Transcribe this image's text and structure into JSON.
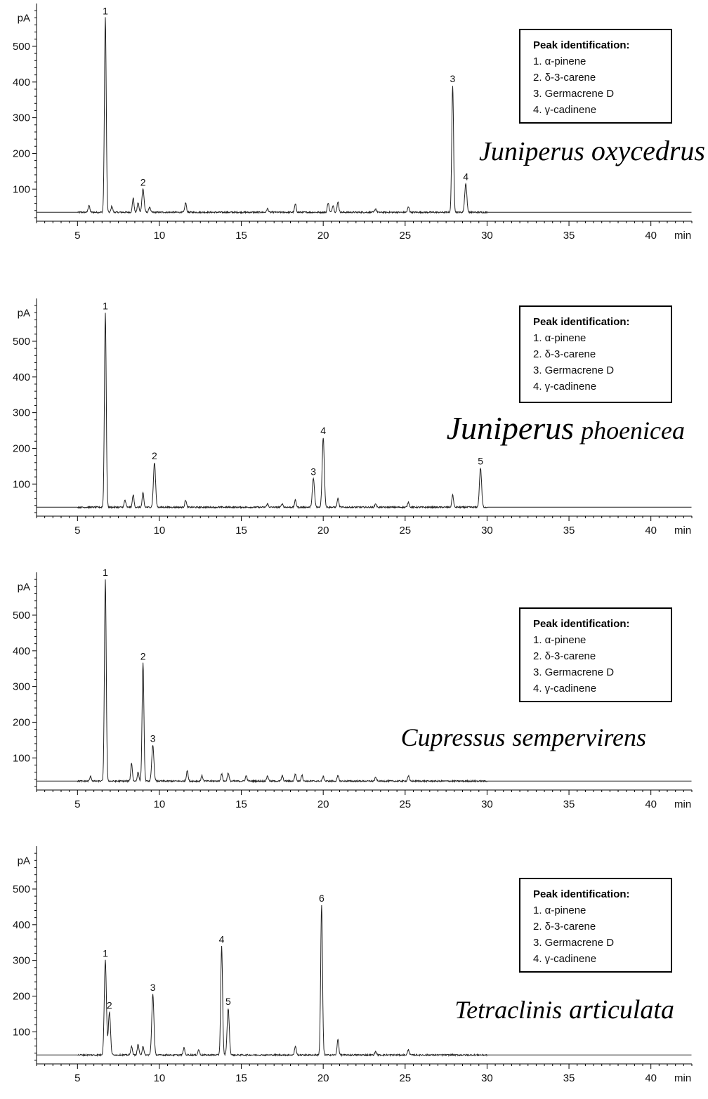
{
  "chart_data": [
    {
      "type": "line",
      "title": "",
      "species": [
        "Juniperus",
        "oxycedrus"
      ],
      "ylabel": "pA",
      "xlabel": "min",
      "xlim": [
        2.5,
        42.5
      ],
      "ylim": [
        10,
        620
      ],
      "x_ticks": [
        5,
        10,
        15,
        20,
        25,
        30,
        35,
        40
      ],
      "y_ticks": [
        100,
        200,
        300,
        400,
        500
      ],
      "baseline": 35,
      "legend": {
        "title": "Peak identification:",
        "items": [
          "1. α-pinene",
          "2. δ-3-carene",
          "3. Germacrene D",
          "4. γ-cadinene"
        ]
      },
      "labeled_peaks": [
        {
          "label": "1",
          "x": 6.7,
          "y": 580
        },
        {
          "label": "2",
          "x": 9.0,
          "y": 100
        },
        {
          "label": "3",
          "x": 27.9,
          "y": 390
        },
        {
          "label": "4",
          "x": 28.7,
          "y": 115
        }
      ],
      "minor_peaks": [
        {
          "x": 5.7,
          "y": 55
        },
        {
          "x": 7.1,
          "y": 52
        },
        {
          "x": 8.4,
          "y": 75
        },
        {
          "x": 8.7,
          "y": 62
        },
        {
          "x": 9.4,
          "y": 50
        },
        {
          "x": 11.6,
          "y": 62
        },
        {
          "x": 16.6,
          "y": 45
        },
        {
          "x": 18.3,
          "y": 58
        },
        {
          "x": 20.3,
          "y": 62
        },
        {
          "x": 20.6,
          "y": 55
        },
        {
          "x": 20.9,
          "y": 65
        },
        {
          "x": 23.2,
          "y": 45
        },
        {
          "x": 25.2,
          "y": 50
        }
      ]
    },
    {
      "type": "line",
      "title": "",
      "species": [
        "Juniperus",
        "phoenicea"
      ],
      "ylabel": "pA",
      "xlabel": "min",
      "xlim": [
        2.5,
        42.5
      ],
      "ylim": [
        10,
        620
      ],
      "x_ticks": [
        5,
        10,
        15,
        20,
        25,
        30,
        35,
        40
      ],
      "y_ticks": [
        100,
        200,
        300,
        400,
        500
      ],
      "baseline": 35,
      "legend": {
        "title": "Peak identification:",
        "items": [
          "1. α-pinene",
          "2. δ-3-carene",
          "3. Germacrene D",
          "4. γ-cadinene"
        ]
      },
      "labeled_peaks": [
        {
          "label": "1",
          "x": 6.7,
          "y": 580
        },
        {
          "label": "2",
          "x": 9.7,
          "y": 160
        },
        {
          "label": "3",
          "x": 19.4,
          "y": 115
        },
        {
          "label": "4",
          "x": 20.0,
          "y": 230
        },
        {
          "label": "5",
          "x": 29.6,
          "y": 145
        }
      ],
      "minor_peaks": [
        {
          "x": 7.9,
          "y": 55
        },
        {
          "x": 8.4,
          "y": 70
        },
        {
          "x": 9.0,
          "y": 75
        },
        {
          "x": 11.6,
          "y": 55
        },
        {
          "x": 16.6,
          "y": 45
        },
        {
          "x": 17.5,
          "y": 45
        },
        {
          "x": 18.3,
          "y": 55
        },
        {
          "x": 20.9,
          "y": 60
        },
        {
          "x": 23.2,
          "y": 45
        },
        {
          "x": 25.2,
          "y": 50
        },
        {
          "x": 27.9,
          "y": 70
        }
      ]
    },
    {
      "type": "line",
      "title": "",
      "species": [
        "Cupressus",
        "sempervirens"
      ],
      "ylabel": "pA",
      "xlabel": "min",
      "xlim": [
        2.5,
        42.5
      ],
      "ylim": [
        10,
        620
      ],
      "x_ticks": [
        5,
        10,
        15,
        20,
        25,
        30,
        35,
        40
      ],
      "y_ticks": [
        100,
        200,
        300,
        400,
        500
      ],
      "baseline": 35,
      "legend": {
        "title": "Peak identification:",
        "items": [
          "1. α-pinene",
          "2. δ-3-carene",
          "3. Germacrene D",
          "4. γ-cadinene"
        ]
      },
      "labeled_peaks": [
        {
          "label": "1",
          "x": 6.7,
          "y": 600
        },
        {
          "label": "2",
          "x": 9.0,
          "y": 365
        },
        {
          "label": "3",
          "x": 9.6,
          "y": 135
        }
      ],
      "minor_peaks": [
        {
          "x": 5.8,
          "y": 48
        },
        {
          "x": 8.3,
          "y": 85
        },
        {
          "x": 8.7,
          "y": 60
        },
        {
          "x": 11.7,
          "y": 65
        },
        {
          "x": 12.6,
          "y": 50
        },
        {
          "x": 13.8,
          "y": 55
        },
        {
          "x": 14.2,
          "y": 58
        },
        {
          "x": 15.3,
          "y": 50
        },
        {
          "x": 16.6,
          "y": 50
        },
        {
          "x": 17.5,
          "y": 50
        },
        {
          "x": 18.3,
          "y": 55
        },
        {
          "x": 18.7,
          "y": 52
        },
        {
          "x": 20.0,
          "y": 48
        },
        {
          "x": 20.9,
          "y": 50
        },
        {
          "x": 23.2,
          "y": 45
        },
        {
          "x": 25.2,
          "y": 50
        }
      ]
    },
    {
      "type": "line",
      "title": "",
      "species": [
        "Tetraclinis",
        "articulata"
      ],
      "ylabel": "pA",
      "xlabel": "min",
      "xlim": [
        2.5,
        42.5
      ],
      "ylim": [
        10,
        620
      ],
      "x_ticks": [
        5,
        10,
        15,
        20,
        25,
        30,
        35,
        40
      ],
      "y_ticks": [
        100,
        200,
        300,
        400,
        500
      ],
      "baseline": 35,
      "legend": {
        "title": "Peak identification:",
        "items": [
          "1. α-pinene",
          "2. δ-3-carene",
          "3. Germacrene D",
          "4. γ-cadinene"
        ]
      },
      "labeled_peaks": [
        {
          "label": "1",
          "x": 6.7,
          "y": 300
        },
        {
          "label": "2",
          "x": 6.95,
          "y": 155
        },
        {
          "label": "3",
          "x": 9.6,
          "y": 205
        },
        {
          "label": "4",
          "x": 13.8,
          "y": 340
        },
        {
          "label": "5",
          "x": 14.2,
          "y": 165
        },
        {
          "label": "6",
          "x": 19.9,
          "y": 455
        }
      ],
      "minor_peaks": [
        {
          "x": 8.3,
          "y": 60
        },
        {
          "x": 8.7,
          "y": 65
        },
        {
          "x": 9.0,
          "y": 60
        },
        {
          "x": 11.5,
          "y": 55
        },
        {
          "x": 12.4,
          "y": 50
        },
        {
          "x": 18.3,
          "y": 60
        },
        {
          "x": 20.9,
          "y": 80
        },
        {
          "x": 23.2,
          "y": 45
        },
        {
          "x": 25.2,
          "y": 50
        }
      ]
    }
  ]
}
